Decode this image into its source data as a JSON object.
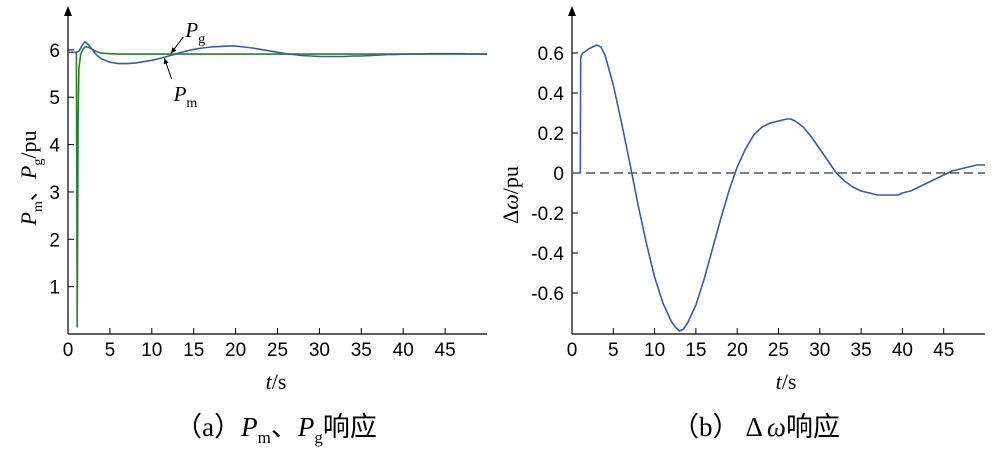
{
  "chart_data": [
    {
      "type": "line",
      "caption_prefix": "（a）",
      "caption_suffix": "响应",
      "xlabel_var": "t",
      "xlabel_unit": "/s",
      "ylabel_unit": "/pu",
      "ylabel_sep": "、",
      "xlim": [
        0,
        50
      ],
      "ylim": [
        0,
        6.8
      ],
      "x_ticks": [
        0,
        5,
        10,
        15,
        20,
        25,
        30,
        35,
        40,
        45
      ],
      "x_tick_labels": [
        "0",
        "5",
        "10",
        "15",
        "20",
        "25",
        "30",
        "35",
        "40",
        "45"
      ],
      "y_ticks": [
        1,
        2,
        3,
        4,
        5,
        6
      ],
      "y_tick_labels": [
        "1",
        "2",
        "3",
        "4",
        "5",
        "6"
      ],
      "grid": false,
      "series": [
        {
          "name": "Pg",
          "color": "#2e7d2e",
          "x": [
            0.0,
            1.0,
            1.1,
            1.2,
            1.3,
            1.5,
            1.8,
            2.1,
            2.5,
            3.0,
            3.5,
            4.0,
            5.0,
            6.0,
            8.0,
            10.0,
            15.0,
            20.0,
            25.0,
            30.0,
            35.0,
            40.0,
            45.0,
            50.0
          ],
          "y": [
            5.95,
            5.95,
            0.15,
            4.5,
            5.6,
            5.9,
            6.02,
            6.07,
            6.05,
            6.0,
            5.96,
            5.93,
            5.92,
            5.91,
            5.91,
            5.91,
            5.91,
            5.91,
            5.91,
            5.91,
            5.91,
            5.91,
            5.91,
            5.91
          ]
        },
        {
          "name": "Pm",
          "color": "#3b5ba8",
          "x": [
            0.0,
            1.0,
            1.3,
            1.6,
            2.0,
            2.4,
            3.0,
            3.5,
            4.0,
            5.0,
            6.0,
            7.0,
            8.0,
            9.0,
            10.0,
            11.0,
            12.0,
            13.0,
            14.0,
            15.0,
            16.0,
            17.0,
            18.0,
            19.0,
            20.0,
            21.0,
            22.0,
            23.0,
            24.0,
            25.0,
            26.0,
            27.0,
            28.0,
            29.0,
            30.0,
            31.0,
            32.0,
            33.0,
            34.0,
            35.0,
            36.0,
            37.0,
            38.0,
            39.0,
            40.0,
            41.0,
            42.0,
            43.0,
            44.0,
            45.0,
            46.0,
            47.0,
            48.0,
            49.0,
            50.0
          ],
          "y": [
            5.95,
            5.95,
            5.97,
            6.07,
            6.17,
            6.12,
            5.98,
            5.88,
            5.81,
            5.74,
            5.71,
            5.71,
            5.72,
            5.75,
            5.78,
            5.82,
            5.87,
            5.92,
            5.97,
            6.01,
            6.04,
            6.06,
            6.07,
            6.08,
            6.08,
            6.06,
            6.04,
            6.01,
            5.98,
            5.95,
            5.92,
            5.9,
            5.88,
            5.87,
            5.86,
            5.86,
            5.86,
            5.86,
            5.87,
            5.87,
            5.88,
            5.89,
            5.9,
            5.9,
            5.91,
            5.91,
            5.91,
            5.92,
            5.92,
            5.92,
            5.92,
            5.92,
            5.91,
            5.91,
            5.91
          ]
        }
      ],
      "annotations": [
        {
          "var": "P",
          "sub": "g",
          "target_series": "Pg",
          "at_x": 12.3,
          "at_y": 5.93,
          "label_x": 14.0,
          "label_y": 6.4
        },
        {
          "var": "P",
          "sub": "m",
          "target_series": "Pm",
          "at_x": 11.5,
          "at_y": 5.82,
          "label_x": 12.6,
          "label_y": 5.05
        }
      ]
    },
    {
      "type": "line",
      "caption_prefix": "（b）",
      "caption_mid": "Δ",
      "caption_var": "ω",
      "caption_suffix": "响应",
      "xlabel_var": "t",
      "xlabel_unit": "/s",
      "ylabel_prefix": "Δ",
      "ylabel_var": "ω",
      "ylabel_unit": "/pu",
      "xlim": [
        0,
        50
      ],
      "ylim": [
        -0.78,
        0.76
      ],
      "x_ticks": [
        0,
        5,
        10,
        15,
        20,
        25,
        30,
        35,
        40,
        45
      ],
      "x_tick_labels": [
        "0",
        "5",
        "10",
        "15",
        "20",
        "25",
        "30",
        "35",
        "40",
        "45"
      ],
      "y_ticks": [
        0.6,
        0.4,
        0.2,
        0,
        -0.2,
        -0.4,
        -0.6
      ],
      "y_tick_labels": [
        "0.6",
        "0.4",
        "0.2",
        "0",
        "-0.2",
        "-0.4",
        "-0.6"
      ],
      "grid": false,
      "reference_line": {
        "y": 0,
        "style": "dashed"
      },
      "series": [
        {
          "name": "Δω",
          "color": "#3b5ba8",
          "x": [
            0.0,
            1.0,
            1.05,
            1.3,
            1.7,
            2.0,
            2.5,
            3.0,
            3.5,
            4.0,
            5.0,
            6.0,
            7.0,
            8.0,
            9.0,
            10.0,
            11.0,
            12.0,
            12.5,
            13.0,
            13.5,
            14.0,
            15.0,
            16.0,
            17.0,
            18.0,
            19.0,
            20.0,
            21.0,
            22.0,
            23.0,
            24.0,
            25.0,
            26.0,
            26.5,
            27.0,
            28.0,
            29.0,
            30.0,
            31.0,
            32.0,
            33.0,
            34.0,
            35.0,
            36.0,
            37.0,
            38.0,
            39.0,
            39.5,
            40.0,
            41.0,
            42.0,
            43.0,
            44.0,
            45.0,
            46.0,
            47.0,
            48.0,
            49.0,
            50.0
          ],
          "y": [
            0.0,
            0.0,
            0.58,
            0.6,
            0.61,
            0.62,
            0.63,
            0.64,
            0.63,
            0.59,
            0.44,
            0.25,
            0.05,
            -0.16,
            -0.35,
            -0.52,
            -0.65,
            -0.74,
            -0.77,
            -0.79,
            -0.78,
            -0.75,
            -0.66,
            -0.53,
            -0.38,
            -0.23,
            -0.09,
            0.03,
            0.12,
            0.19,
            0.23,
            0.25,
            0.26,
            0.27,
            0.27,
            0.26,
            0.23,
            0.18,
            0.12,
            0.06,
            0.0,
            -0.04,
            -0.07,
            -0.09,
            -0.1,
            -0.11,
            -0.11,
            -0.11,
            -0.11,
            -0.1,
            -0.09,
            -0.07,
            -0.05,
            -0.03,
            -0.01,
            0.01,
            0.02,
            0.03,
            0.04,
            0.04
          ]
        }
      ],
      "annotations": []
    }
  ]
}
